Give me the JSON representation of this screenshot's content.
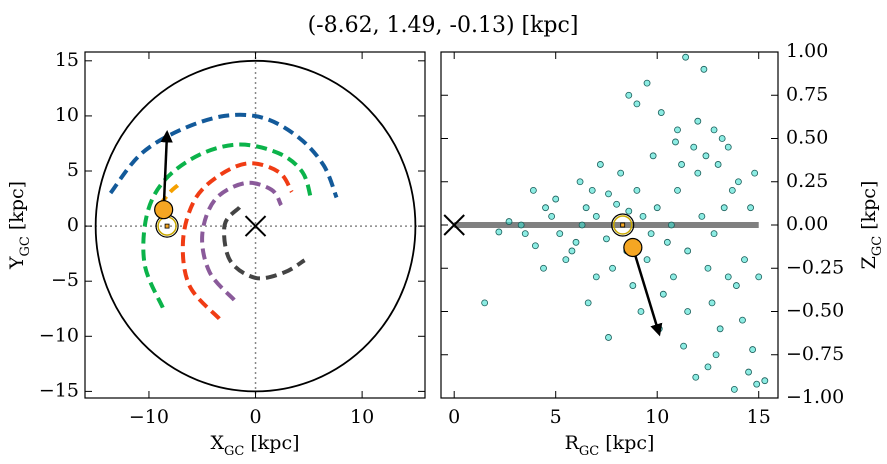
{
  "title": "(-8.62, 1.49, -0.13) [kpc]",
  "chart_data": [
    {
      "type": "line",
      "xlabel": [
        "X",
        "GC",
        " [kpc]"
      ],
      "ylabel": [
        "Y",
        "GC",
        " [kpc]"
      ],
      "xlim": [
        -16,
        15.9
      ],
      "ylim": [
        -15.6,
        15.8
      ],
      "xticks": [
        {
          "value": -10,
          "label": "−10"
        },
        0,
        10
      ],
      "yticks": [
        {
          "value": -15,
          "label": "−15"
        },
        {
          "value": -10,
          "label": "−10"
        },
        {
          "value": -5,
          "label": "−5"
        },
        0,
        5,
        10,
        15
      ],
      "circle_radius": 15,
      "hline": 0,
      "vline": 0,
      "series": [
        {
          "color": "#135a9a",
          "x": [
            -13.6,
            -10.8,
            -7.1,
            -2.9,
            0.8,
            4.1,
            6.4,
            7.6
          ],
          "values": [
            3.0,
            6.5,
            8.7,
            10.0,
            9.8,
            8.0,
            5.5,
            2.6
          ]
        },
        {
          "color": "#0bb34a",
          "x": [
            -8.7,
            -10.4,
            -10.2,
            -8.5,
            -5.2,
            -1.5,
            2.2,
            4.4,
            5.2
          ],
          "values": [
            -7.4,
            -3.5,
            1.0,
            4.2,
            6.5,
            7.4,
            6.6,
            4.9,
            2.5
          ]
        },
        {
          "color": "#f03c14",
          "x": [
            -3.4,
            -6.2,
            -6.8,
            -5.7,
            -3.4,
            -0.6,
            2.2,
            3.4
          ],
          "values": [
            -8.4,
            -5.4,
            -1.3,
            2.4,
            4.6,
            5.7,
            4.9,
            3.1
          ]
        },
        {
          "color": "#8a5a9a",
          "x": [
            -2.0,
            -4.3,
            -5.0,
            -3.8,
            -1.0,
            1.5,
            2.4
          ],
          "values": [
            -6.7,
            -4.2,
            -0.8,
            2.4,
            3.9,
            3.3,
            1.9
          ]
        },
        {
          "color": "#444444",
          "x": [
            -1.5,
            -2.9,
            -2.4,
            0,
            2.7,
            4.6
          ],
          "values": [
            1.7,
            0.1,
            -3.1,
            -4.7,
            -4.2,
            -3.1
          ]
        },
        {
          "color": "#f5a000",
          "x": [
            -9.0,
            -8.0,
            -7.3
          ],
          "values": [
            1.9,
            3.1,
            3.7
          ]
        }
      ],
      "sun": {
        "x": -8.3,
        "y": 0
      },
      "center": {
        "x": 0,
        "y": 0
      },
      "star": {
        "x": -8.62,
        "y": 1.49,
        "color": "#f5a623"
      },
      "arrow": {
        "x": [
          -8.62,
          -8.3
        ],
        "y": [
          1.49,
          8.5
        ]
      }
    },
    {
      "type": "scatter",
      "xlabel": [
        "R",
        "GC",
        " [kpc]"
      ],
      "ylabel": [
        "Z",
        "GC",
        " [kpc]"
      ],
      "xlim": [
        -0.65,
        15.95
      ],
      "ylim": [
        -1,
        1
      ],
      "xticks": [
        0,
        5,
        10,
        15
      ],
      "yticks": [
        {
          "value": -1,
          "label": "−1.00"
        },
        {
          "value": -0.75,
          "label": "−0.75"
        },
        {
          "value": -0.5,
          "label": "−0.50"
        },
        {
          "value": -0.25,
          "label": "−0.25"
        },
        {
          "value": 0,
          "label": "0.00"
        },
        {
          "value": 0.25,
          "label": "0.25"
        },
        {
          "value": 0.5,
          "label": "0.50"
        },
        {
          "value": 0.75,
          "label": "0.75"
        },
        {
          "value": 1,
          "label": "1.00"
        }
      ],
      "disk_line": {
        "x": [
          0,
          15
        ],
        "y": 0
      },
      "series": [
        {
          "color": "#40e0d0",
          "x": [
            1.5,
            3.3,
            7.6,
            11.4,
            12.3,
            13.1,
            14.7,
            14.9,
            15.3,
            14.5,
            11.9,
            12.5,
            13.8,
            14.2,
            13.2,
            12.8,
            9.0,
            8.6,
            9.5,
            10.2,
            11.0,
            12.0,
            13.5,
            14.0,
            14.6,
            15.0,
            13.9,
            12.7,
            11.5,
            10.8,
            7.0,
            6.2,
            5.5,
            4.5,
            3.5,
            2.7,
            2.2,
            4.0,
            5.0,
            6.0,
            6.5,
            7.0,
            7.5,
            8.0,
            8.5,
            9.0,
            9.5,
            10.0,
            10.5,
            11.0,
            11.5,
            12.0,
            12.5,
            13.0,
            13.5,
            8.2,
            7.8,
            9.8,
            10.3,
            11.2,
            6.8,
            5.8,
            7.2,
            8.8,
            9.3,
            10.7,
            6.3,
            5.2,
            4.8,
            12.2,
            12.8,
            13.3,
            9.7,
            8.6,
            7.6,
            11.8,
            12.4,
            10.9,
            13.7,
            14.3,
            14.8,
            9.2,
            10.1,
            11.3,
            12.9,
            6.6,
            3.9,
            4.4
          ],
          "values": [
            -0.45,
            0.0,
            -0.65,
            0.97,
            0.9,
            -0.6,
            -0.72,
            -0.92,
            -0.9,
            -0.85,
            -0.88,
            -0.82,
            -0.95,
            -0.55,
            0.5,
            0.55,
            0.7,
            0.75,
            0.82,
            0.65,
            0.55,
            0.6,
            0.45,
            0.25,
            0.1,
            -0.3,
            -0.35,
            -0.45,
            -0.5,
            -0.3,
            -0.3,
            0.25,
            -0.2,
            0.1,
            -0.05,
            0.02,
            -0.04,
            -0.12,
            0.15,
            -0.1,
            0.1,
            0.05,
            -0.08,
            0.12,
            -0.15,
            0.2,
            -0.2,
            0.1,
            -0.1,
            0.2,
            -0.15,
            0.3,
            -0.25,
            0.35,
            -0.3,
            0.3,
            -0.25,
            0.4,
            -0.4,
            0.35,
            0.2,
            -0.15,
            0.35,
            -0.35,
            0.05,
            0.0,
            0.0,
            -0.05,
            0.05,
            0.05,
            -0.05,
            0.1,
            -0.05,
            0.08,
            0.18,
            0.45,
            0.4,
            0.48,
            0.2,
            -0.2,
            0.3,
            -0.5,
            -0.6,
            -0.7,
            -0.75,
            -0.45,
            0.2,
            -0.25
          ]
        }
      ],
      "sun": {
        "x": 8.3,
        "y": 0
      },
      "center": {
        "x": 0,
        "y": 0
      },
      "star": {
        "x": 8.8,
        "y": -0.13,
        "color": "#f5a623"
      },
      "arrow": {
        "x": [
          8.8,
          10.1
        ],
        "y": [
          -0.13,
          -0.63
        ]
      }
    }
  ]
}
